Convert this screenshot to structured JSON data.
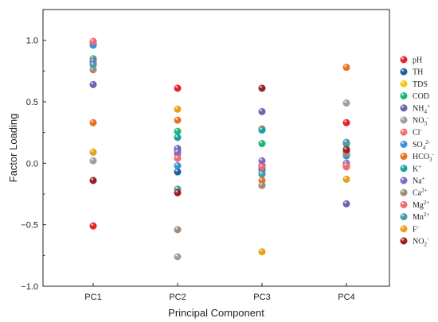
{
  "chart_data": {
    "type": "scatter",
    "xlabel": "Principal Component",
    "ylabel": "Factor Loading",
    "categories": [
      "PC1",
      "PC2",
      "PC3",
      "PC4"
    ],
    "ylim": [
      -1.0,
      1.25
    ],
    "yticks": [
      -1.0,
      -0.5,
      0.0,
      0.5,
      1.0
    ],
    "ytick_labels": [
      "−1.0",
      "−0.5",
      "0.0",
      "0.5",
      "1.0"
    ],
    "grid": false,
    "legend_position": "right",
    "series": [
      {
        "base": "pH",
        "sup": "",
        "sub": "",
        "color": "#e8202a",
        "values": [
          -0.51,
          0.61,
          -0.02,
          0.33
        ]
      },
      {
        "base": "TH",
        "sup": "",
        "sub": "",
        "color": "#1f5f9c",
        "values": [
          0.97,
          -0.07,
          -0.05,
          0.1
        ]
      },
      {
        "base": "TDS",
        "sup": "",
        "sub": "",
        "color": "#f5c518",
        "values": [
          0.98,
          0.11,
          0.28,
          0.12
        ]
      },
      {
        "base": "COD",
        "sup": "",
        "sub": "",
        "color": "#1fb57a",
        "values": [
          0.85,
          0.26,
          0.16,
          0.16
        ]
      },
      {
        "base": "NH",
        "sup": "+",
        "sub": "4",
        "color": "#6a63b0",
        "values": [
          0.64,
          0.12,
          0.42,
          -0.33
        ]
      },
      {
        "base": "NO",
        "sup": "-",
        "sub": "3",
        "color": "#9e9e9e",
        "values": [
          0.02,
          -0.76,
          -0.18,
          0.49
        ]
      },
      {
        "base": "Cl",
        "sup": "-",
        "sub": "",
        "color": "#f07070",
        "values": [
          0.99,
          0.07,
          0.28,
          -0.03
        ]
      },
      {
        "base": "SO",
        "sup": "2-",
        "sub": "4",
        "color": "#3c8fd6",
        "values": [
          0.96,
          -0.02,
          -0.08,
          0.06
        ]
      },
      {
        "base": "HCO",
        "sup": "-",
        "sub": "3",
        "color": "#e8711c",
        "values": [
          0.33,
          0.35,
          -0.14,
          0.78
        ]
      },
      {
        "base": "K",
        "sup": "+",
        "sub": "",
        "color": "#14a3a0",
        "values": [
          0.81,
          0.21,
          0.27,
          0.16
        ]
      },
      {
        "base": "Na",
        "sup": "+",
        "sub": "",
        "color": "#7c6bc2",
        "values": [
          0.83,
          0.09,
          0.02,
          0.0
        ]
      },
      {
        "base": "Ca",
        "sup": "2+",
        "sub": "",
        "color": "#a08a7a",
        "values": [
          0.76,
          -0.54,
          -0.18,
          0.08
        ]
      },
      {
        "base": "Mg",
        "sup": "2+",
        "sub": "",
        "color": "#f06a74",
        "values": [
          0.99,
          0.04,
          -0.03,
          -0.02
        ]
      },
      {
        "base": "Mn",
        "sup": "2+",
        "sub": "",
        "color": "#4a9aac",
        "values": [
          0.8,
          -0.21,
          -0.09,
          0.17
        ]
      },
      {
        "base": "F",
        "sup": "-",
        "sub": "",
        "color": "#e8a018",
        "values": [
          0.09,
          0.44,
          -0.72,
          -0.13
        ]
      },
      {
        "base": "NO",
        "sup": "-",
        "sub": "2",
        "color": "#9c1f24",
        "values": [
          -0.14,
          -0.24,
          0.61,
          0.11
        ]
      }
    ]
  }
}
